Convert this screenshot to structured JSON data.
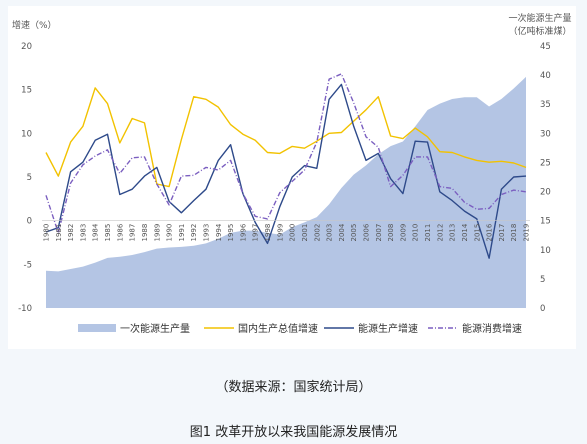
{
  "chart_data": {
    "type": "area-line",
    "title": "",
    "left_axis": {
      "label_line1": "增速（%）",
      "ylim": [
        -10,
        20
      ],
      "ticks": [
        -10,
        -5,
        0,
        5,
        10,
        15,
        20
      ]
    },
    "right_axis": {
      "label_line1": "一次能源生产量",
      "label_line2": "（亿吨标准煤）",
      "ylim": [
        0,
        45
      ],
      "ticks": [
        0,
        5,
        10,
        15,
        20,
        25,
        30,
        35,
        40,
        45
      ]
    },
    "categories": [
      "1980",
      "1981",
      "1982",
      "1983",
      "1984",
      "1985",
      "1986",
      "1987",
      "1988",
      "1989",
      "1990",
      "1991",
      "1992",
      "1993",
      "1994",
      "1995",
      "1996",
      "1997",
      "1998",
      "1999",
      "2000",
      "2001",
      "2002",
      "2003",
      "2004",
      "2005",
      "2006",
      "2007",
      "2008",
      "2009",
      "2010",
      "2011",
      "2012",
      "2013",
      "2014",
      "2015",
      "2016",
      "2017",
      "2018",
      "2019"
    ],
    "series": [
      {
        "name": "一次能源生产量",
        "kind": "area",
        "axis": "right",
        "color": "#b4c5e4",
        "values": [
          6.4,
          6.3,
          6.7,
          7.1,
          7.8,
          8.6,
          8.8,
          9.1,
          9.6,
          10.2,
          10.4,
          10.5,
          10.7,
          11.1,
          11.9,
          12.9,
          13.3,
          13.3,
          12.9,
          12.6,
          13.9,
          14.7,
          15.6,
          17.8,
          20.6,
          22.9,
          24.5,
          26.4,
          27.8,
          28.6,
          31.2,
          34.0,
          35.1,
          35.9,
          36.2,
          36.2,
          34.6,
          35.9,
          37.7,
          39.7
        ]
      },
      {
        "name": "国内生产总值增速",
        "kind": "line",
        "axis": "left",
        "color": "#f2c200",
        "dash": "",
        "values": [
          7.8,
          5.1,
          9.0,
          10.8,
          15.2,
          13.4,
          8.9,
          11.7,
          11.2,
          4.2,
          3.9,
          9.3,
          14.2,
          13.9,
          13.0,
          11.0,
          9.9,
          9.2,
          7.8,
          7.7,
          8.5,
          8.3,
          9.1,
          10.0,
          10.1,
          11.4,
          12.7,
          14.2,
          9.7,
          9.4,
          10.6,
          9.6,
          7.9,
          7.8,
          7.3,
          6.9,
          6.7,
          6.8,
          6.6,
          6.1
        ]
      },
      {
        "name": "能源生产增速",
        "kind": "line",
        "axis": "left",
        "color": "#2e4a8a",
        "dash": "",
        "values": [
          -1.3,
          -0.8,
          5.6,
          6.7,
          9.2,
          9.9,
          3.0,
          3.6,
          5.1,
          6.1,
          2.2,
          0.9,
          2.3,
          3.6,
          6.9,
          8.7,
          3.1,
          -0.2,
          -2.6,
          1.6,
          5.0,
          6.3,
          6.0,
          13.9,
          15.6,
          10.8,
          6.9,
          7.7,
          4.8,
          3.1,
          9.1,
          9.0,
          3.3,
          2.3,
          1.1,
          0.2,
          -4.3,
          3.6,
          5.0,
          5.1
        ]
      },
      {
        "name": "能源消费增速",
        "kind": "line",
        "axis": "left",
        "color": "#7b5fc0",
        "dash": "5,2,1,2",
        "values": [
          2.9,
          -1.4,
          4.3,
          6.4,
          7.4,
          8.1,
          5.4,
          7.2,
          7.3,
          4.2,
          1.8,
          5.1,
          5.2,
          6.1,
          5.8,
          6.9,
          3.1,
          0.5,
          0.2,
          3.2,
          4.5,
          5.8,
          9.0,
          16.2,
          16.8,
          13.5,
          9.6,
          8.4,
          3.9,
          5.2,
          7.3,
          7.3,
          3.9,
          3.7,
          2.1,
          1.3,
          1.4,
          3.0,
          3.5,
          3.3
        ]
      }
    ],
    "legend_position": "bottom",
    "grid": false
  },
  "captions": {
    "source": "（数据来源：国家统计局）",
    "figure": "图1 改革开放以来我国能源发展情况"
  }
}
